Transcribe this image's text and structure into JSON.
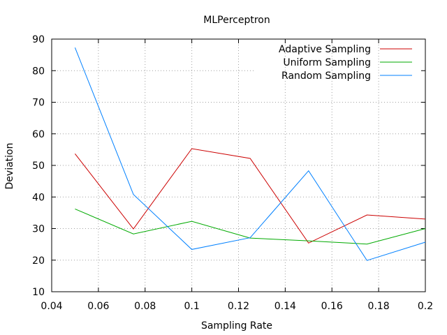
{
  "chart_data": {
    "type": "line",
    "title": "MLPerceptron",
    "xlabel": "Sampling Rate",
    "ylabel": "Deviation",
    "xlim": [
      0.04,
      0.2
    ],
    "ylim": [
      10,
      90
    ],
    "xticks": [
      0.04,
      0.06,
      0.08,
      0.1,
      0.12,
      0.14,
      0.16,
      0.18,
      0.2
    ],
    "xtick_labels": [
      "0.04",
      "0.06",
      "0.08",
      "0.1",
      "0.12",
      "0.14",
      "0.16",
      "0.18",
      "0.2"
    ],
    "yticks": [
      10,
      20,
      30,
      40,
      50,
      60,
      70,
      80,
      90
    ],
    "ytick_labels": [
      "10",
      "20",
      "30",
      "40",
      "50",
      "60",
      "70",
      "80",
      "90"
    ],
    "grid": true,
    "legend_position": "top-right",
    "x": [
      0.05,
      0.075,
      0.1,
      0.125,
      0.15,
      0.175,
      0.2
    ],
    "series": [
      {
        "name": "Adaptive Sampling",
        "color": "#cc0000",
        "values": [
          53.7,
          29.9,
          55.3,
          52.2,
          25.4,
          34.3,
          33.0
        ]
      },
      {
        "name": "Uniform Sampling",
        "color": "#00aa00",
        "values": [
          36.2,
          28.3,
          32.3,
          27.0,
          26.1,
          25.1,
          30.0
        ]
      },
      {
        "name": "Random Sampling",
        "color": "#0080ff",
        "values": [
          87.3,
          40.8,
          23.4,
          27.1,
          48.3,
          19.9,
          25.7
        ]
      }
    ]
  }
}
